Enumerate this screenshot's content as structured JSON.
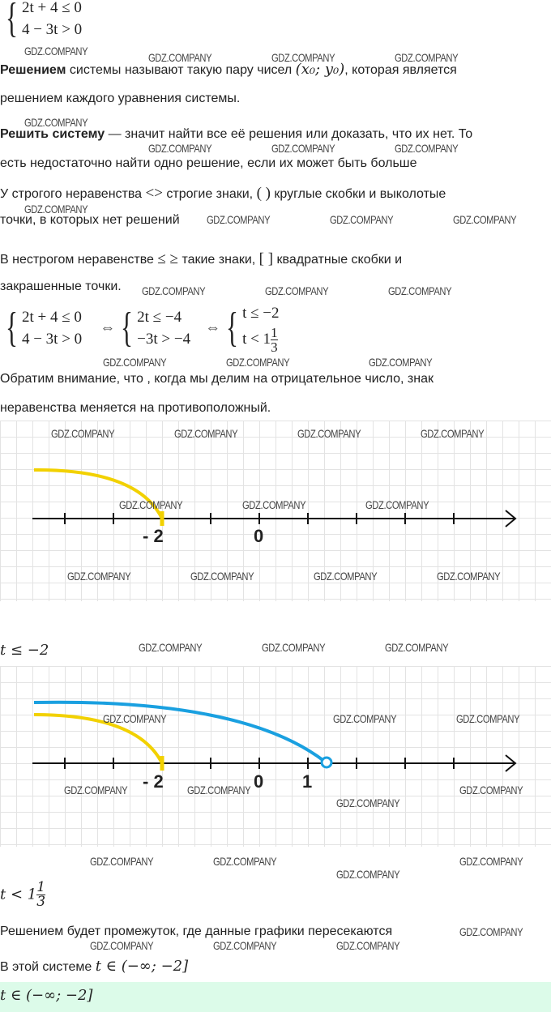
{
  "system1": {
    "row1": "2t + 4  ≤  0",
    "row2": "4 − 3t  >  0"
  },
  "p1": {
    "bold": "Решением",
    "text": " системы называют такую пару чисел ",
    "math": "(x₀; y₀)",
    "text2": ", которая является"
  },
  "p1b": "решением каждого уравнения системы.",
  "p2": {
    "bold": "Решить систему",
    "text": " — значит найти все её решения или доказать, что их нет. То"
  },
  "p2b": "есть недостаточно найти одно решение, если их может быть больше",
  "p3": {
    "text": "У строгого неравенства ",
    "sym": "<>",
    "text2": " строгие знаки, ",
    "br": "(  )",
    "text3": " круглые скобки и выколотые"
  },
  "p3b": "точки, в которых нет решений",
  "p4": {
    "text": "В нестрогом неравенстве ",
    "sym": "≤ ≥",
    "text2": " такие знаки, ",
    "br": "[  ]",
    "text3": " квадратные скобки и"
  },
  "p4b": "закрашенные точки.",
  "system2": {
    "a1": "2t + 4  ≤  0",
    "a2": "4 − 3t  >  0",
    "equiv": "⇔",
    "b1": "2t  ≤  −4",
    "b2": "−3t  >  −4",
    "c1": "t  ≤  −2",
    "c2_pre": "t  <  1",
    "c2_num": "1",
    "c2_den": "3"
  },
  "p5": "Обратим внимание, что , когда мы делим на отрицательное число, знак",
  "p5b": "неравенства меняется на противоположный.",
  "graph1": {
    "labels": {
      "m2": "- 2",
      "zero": "0"
    },
    "colors": {
      "yellow": "#f2d100",
      "axis": "#111"
    }
  },
  "ineq1": "t  ≤  −2",
  "graph2": {
    "labels": {
      "m2": "- 2",
      "zero": "0",
      "one": "1"
    },
    "colors": {
      "yellow": "#f2d100",
      "blue": "#1aa0e0"
    }
  },
  "ineq2": {
    "pre": "t  <  1",
    "num": "1",
    "den": "3"
  },
  "p6": "Решением будет промежуток, где данные графики пересекаются",
  "p7": {
    "text": "В этой системе ",
    "math": "t ∈ (−∞;  −2]"
  },
  "answer": "t ∈ (−∞;  −2]",
  "watermark": "GDZ.COMPANY",
  "colors": {
    "answer_bg": "#dcfbe9",
    "grid": "#e3e3e3"
  }
}
